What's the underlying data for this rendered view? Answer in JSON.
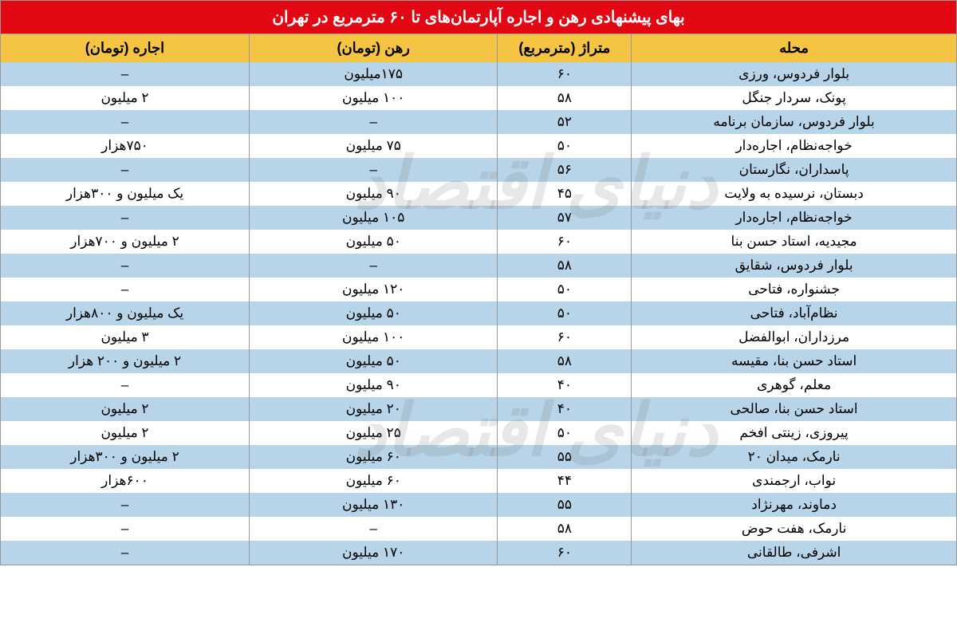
{
  "title": "بهای پیشنهادی رهن و اجاره آپارتمان‌های تا ۶۰ مترمربع در تهران",
  "watermark": "دنیای اقتصاد",
  "colors": {
    "header_bg": "#e30613",
    "header_text": "#ffffff",
    "thead_bg": "#f5c443",
    "row_odd_bg": "#b8d4e8",
    "row_even_bg": "#ffffff",
    "border": "#999999",
    "text": "#000000"
  },
  "columns": [
    {
      "key": "neighborhood",
      "label": "محله"
    },
    {
      "key": "area",
      "label": "متراژ\n(مترمربع)"
    },
    {
      "key": "deposit",
      "label": "رهن (تومان)"
    },
    {
      "key": "rent",
      "label": "اجاره (تومان)"
    }
  ],
  "rows": [
    {
      "neighborhood": "بلوار فردوس، ورزی",
      "area": "۶۰",
      "deposit": "۱۷۵میلیون",
      "rent": "–"
    },
    {
      "neighborhood": "پونک، سردار جنگل",
      "area": "۵۸",
      "deposit": "۱۰۰ میلیون",
      "rent": "۲ میلیون"
    },
    {
      "neighborhood": "بلوار فردوس، سازمان برنامه",
      "area": "۵۲",
      "deposit": "–",
      "rent": "–"
    },
    {
      "neighborhood": "خواجه‌نظام، اجاره‌دار",
      "area": "۵۰",
      "deposit": "۷۵ میلیون",
      "rent": "۷۵۰هزار"
    },
    {
      "neighborhood": "پاسداران، نگارستان",
      "area": "۵۶",
      "deposit": "–",
      "rent": "–"
    },
    {
      "neighborhood": "دبستان، نرسیده به ولایت",
      "area": "۴۵",
      "deposit": "۹۰ میلیون",
      "rent": "یک میلیون و ۳۰۰هزار"
    },
    {
      "neighborhood": "خواجه‌نظام، اجاره‌دار",
      "area": "۵۷",
      "deposit": "۱۰۵ میلیون",
      "rent": "–"
    },
    {
      "neighborhood": "مجیدیه، استاد حسن بنا",
      "area": "۶۰",
      "deposit": "۵۰ میلیون",
      "rent": "۲ میلیون و ۷۰۰هزار"
    },
    {
      "neighborhood": "بلوار فردوس، شقایق",
      "area": "۵۸",
      "deposit": "–",
      "rent": "–"
    },
    {
      "neighborhood": "جشنواره، فتاحی",
      "area": "۵۰",
      "deposit": "۱۲۰ میلیون",
      "rent": "–"
    },
    {
      "neighborhood": "نظام‌آباد، فتاحی",
      "area": "۵۰",
      "deposit": "۵۰ میلیون",
      "rent": "یک میلیون و ۸۰۰هزار"
    },
    {
      "neighborhood": "مرزداران، ابوالفضل",
      "area": "۶۰",
      "deposit": "۱۰۰ میلیون",
      "rent": "۳ میلیون"
    },
    {
      "neighborhood": "استاد حسن بنا، مقیسه",
      "area": "۵۸",
      "deposit": "۵۰ میلیون",
      "rent": "۲ میلیون و ۲۰۰ هزار"
    },
    {
      "neighborhood": "معلم، گوهری",
      "area": "۴۰",
      "deposit": "۹۰ میلیون",
      "rent": "–"
    },
    {
      "neighborhood": "استاد حسن بنا، صالحی",
      "area": "۴۰",
      "deposit": "۲۰ میلیون",
      "rent": "۲ میلیون"
    },
    {
      "neighborhood": "پیروزی، زینتی افخم",
      "area": "۵۰",
      "deposit": "۲۵ میلیون",
      "rent": "۲ میلیون"
    },
    {
      "neighborhood": "نارمک، میدان ۲۰",
      "area": "۵۵",
      "deposit": "۶۰ میلیون",
      "rent": "۲ میلیون و ۳۰۰هزار"
    },
    {
      "neighborhood": "نواب، ارجمندی",
      "area": "۴۴",
      "deposit": "۶۰ میلیون",
      "rent": "۶۰۰هزار"
    },
    {
      "neighborhood": "دماوند، مهرنژاد",
      "area": "۵۵",
      "deposit": "۱۳۰ میلیون",
      "rent": "–"
    },
    {
      "neighborhood": "نارمک، هفت حوض",
      "area": "۵۸",
      "deposit": "–",
      "rent": "–"
    },
    {
      "neighborhood": "اشرفی، طالقانی",
      "area": "۶۰",
      "deposit": "۱۷۰ میلیون",
      "rent": "–"
    }
  ]
}
